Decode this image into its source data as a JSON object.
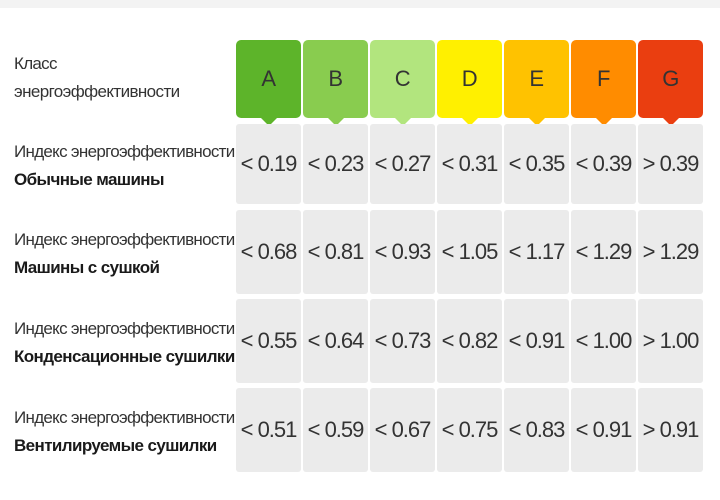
{
  "class_label": {
    "line1": "Класс",
    "line2": "энергоэффективности"
  },
  "classes": [
    {
      "label": "A",
      "color": "#5db42a"
    },
    {
      "label": "B",
      "color": "#89cc4f"
    },
    {
      "label": "C",
      "color": "#b2e57e"
    },
    {
      "label": "D",
      "color": "#fff000"
    },
    {
      "label": "E",
      "color": "#ffc200"
    },
    {
      "label": "F",
      "color": "#ff8c00"
    },
    {
      "label": "G",
      "color": "#ea3e10"
    }
  ],
  "rows": [
    {
      "title": "Индекс энергоэффективности",
      "subtitle": "Обычные машины",
      "values": [
        "< 0.19",
        "< 0.23",
        "< 0.27",
        "< 0.31",
        "< 0.35",
        "< 0.39",
        "> 0.39"
      ]
    },
    {
      "title": "Индекс энергоэффективности",
      "subtitle": "Машины с сушкой",
      "values": [
        "< 0.68",
        "< 0.81",
        "< 0.93",
        "< 1.05",
        "< 1.17",
        "< 1.29",
        "> 1.29"
      ]
    },
    {
      "title": "Индекс энергоэффективности",
      "subtitle": "Конденсационные сушилки",
      "values": [
        "< 0.55",
        "< 0.64",
        "< 0.73",
        "< 0.82",
        "< 0.91",
        "< 1.00",
        "> 1.00"
      ]
    },
    {
      "title": "Индекс энергоэффективности",
      "subtitle": "Вентилируемые сушилки",
      "values": [
        "< 0.51",
        "< 0.59",
        "< 0.67",
        "< 0.75",
        "< 0.83",
        "< 0.91",
        "> 0.91"
      ]
    }
  ]
}
